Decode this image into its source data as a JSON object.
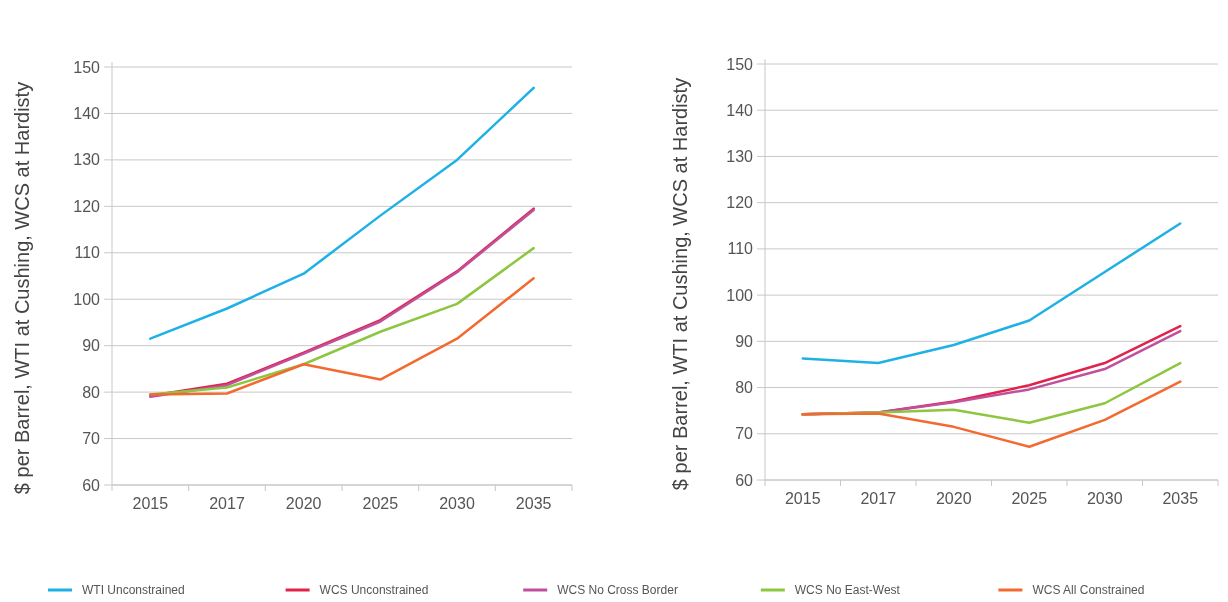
{
  "chart_data": [
    {
      "type": "line",
      "ylabel": "$ per Barrel, WTI at Cushing, WCS at Hardisty",
      "categories": [
        "2015",
        "2017",
        "2020",
        "2025",
        "2030",
        "2035"
      ],
      "ylim": [
        60,
        150
      ],
      "yticks": [
        60,
        70,
        80,
        90,
        100,
        110,
        120,
        130,
        140,
        150
      ],
      "grid": "y",
      "legend": "bottom",
      "series": [
        {
          "name": "WTI Unconstrained",
          "color": "#1fb1e6",
          "values": [
            91.5,
            98,
            105.5,
            118,
            130,
            145.5
          ]
        },
        {
          "name": "WCS Unconstrained",
          "color": "#e0234a",
          "values": [
            79.2,
            81.8,
            88.5,
            95.5,
            106,
            119.5
          ]
        },
        {
          "name": "WCS No Cross Border",
          "color": "#c0509c",
          "values": [
            79,
            81.5,
            88.3,
            95.2,
            105.8,
            119.2
          ]
        },
        {
          "name": "WCS No East-West",
          "color": "#8dc63f",
          "values": [
            79.5,
            81,
            86,
            93,
            99,
            111
          ]
        },
        {
          "name": "WCS All Constrained",
          "color": "#f26a30",
          "values": [
            79.5,
            79.7,
            86,
            82.7,
            91.5,
            104.5
          ]
        }
      ]
    },
    {
      "type": "line",
      "ylabel": "$ per Barrel, WTI at Cushing, WCS at Hardisty",
      "categories": [
        "2015",
        "2017",
        "2020",
        "2025",
        "2030",
        "2035"
      ],
      "ylim": [
        60,
        150
      ],
      "yticks": [
        60,
        70,
        80,
        90,
        100,
        110,
        120,
        130,
        140,
        150
      ],
      "grid": "y",
      "series": [
        {
          "color": "#1fb1e6",
          "values": [
            86.3,
            85.3,
            89.2,
            94.5,
            105,
            115.5
          ]
        },
        {
          "color": "#e0234a",
          "values": [
            74.2,
            74.6,
            77,
            80.5,
            85.3,
            93.3
          ]
        },
        {
          "color": "#c0509c",
          "values": [
            74.2,
            74.6,
            76.8,
            79.6,
            84,
            92.2
          ]
        },
        {
          "color": "#8dc63f",
          "values": [
            74.2,
            74.6,
            75.2,
            72.4,
            76.6,
            85.3
          ]
        },
        {
          "color": "#f26a30",
          "values": [
            74.2,
            74.4,
            71.5,
            67.2,
            73,
            81.3
          ]
        }
      ]
    }
  ]
}
